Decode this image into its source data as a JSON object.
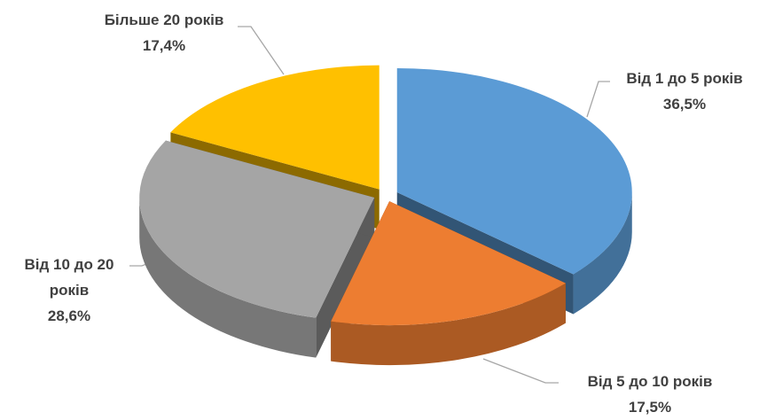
{
  "chart_data": {
    "type": "pie",
    "categories": [
      "Від 1 до 5 років",
      "Від 5 до 10 років",
      "Від 10 до 20 років",
      "Більше 20 років"
    ],
    "values": [
      36.5,
      17.5,
      28.6,
      17.4
    ],
    "value_labels": [
      "36,5%",
      "17,5%",
      "28,6%",
      "17,4%"
    ],
    "colors": [
      "#5b9bd5",
      "#ed7d31",
      "#a5a5a5",
      "#ffc000"
    ]
  }
}
